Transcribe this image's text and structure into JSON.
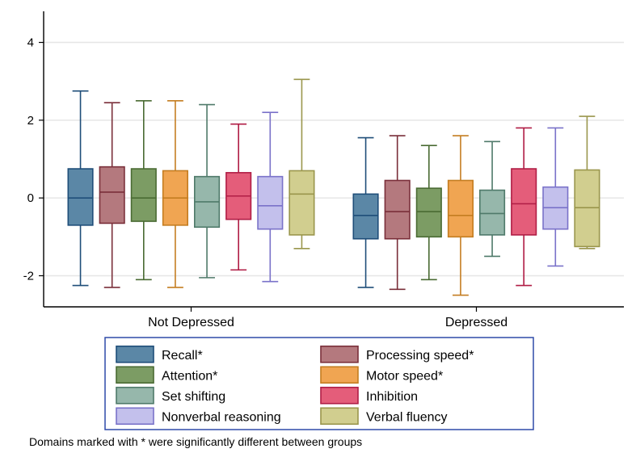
{
  "type": "boxplot",
  "background_color": "#ffffff",
  "plot_border_color": "#000000",
  "grid_color": "#e6e6e6",
  "ylim": [
    -2.8,
    4.8
  ],
  "yticks": [
    -2,
    0,
    2,
    4
  ],
  "tick_fontsize": 15,
  "axis_label_fontsize": 16,
  "groups": [
    "Not Depressed",
    "Depressed"
  ],
  "series": [
    {
      "key": "recall",
      "label": "Recall*",
      "fill": "#5b87a6",
      "stroke": "#1f4e79"
    },
    {
      "key": "procspeed",
      "label": "Processing speed*",
      "fill": "#b4797e",
      "stroke": "#7a2f3a"
    },
    {
      "key": "attention",
      "label": "Attention*",
      "fill": "#7c9c64",
      "stroke": "#4a6b33"
    },
    {
      "key": "motor",
      "label": "Motor speed*",
      "fill": "#f0a552",
      "stroke": "#c47d21"
    },
    {
      "key": "setshift",
      "label": "Set shifting",
      "fill": "#96b7ab",
      "stroke": "#4f7a6a"
    },
    {
      "key": "inhib",
      "label": "Inhibition",
      "fill": "#e45d7a",
      "stroke": "#b01d45"
    },
    {
      "key": "nonverb",
      "label": "Nonverbal reasoning",
      "fill": "#c3c0ec",
      "stroke": "#7a72c9"
    },
    {
      "key": "verbflu",
      "label": "Verbal fluency",
      "fill": "#d1ce8f",
      "stroke": "#9a964c"
    }
  ],
  "data": {
    "Not Depressed": {
      "recall": {
        "min": -2.25,
        "q1": -0.7,
        "median": 0.0,
        "q3": 0.75,
        "max": 2.75
      },
      "procspeed": {
        "min": -2.3,
        "q1": -0.65,
        "median": 0.15,
        "q3": 0.8,
        "max": 2.45
      },
      "attention": {
        "min": -2.1,
        "q1": -0.6,
        "median": 0.0,
        "q3": 0.75,
        "max": 2.5
      },
      "motor": {
        "min": -2.3,
        "q1": -0.7,
        "median": 0.0,
        "q3": 0.7,
        "max": 2.5
      },
      "setshift": {
        "min": -2.05,
        "q1": -0.75,
        "median": -0.1,
        "q3": 0.55,
        "max": 2.4
      },
      "inhib": {
        "min": -1.85,
        "q1": -0.55,
        "median": 0.05,
        "q3": 0.65,
        "max": 1.9
      },
      "nonverb": {
        "min": -2.15,
        "q1": -0.8,
        "median": -0.2,
        "q3": 0.55,
        "max": 2.2
      },
      "verbflu": {
        "min": -1.3,
        "q1": -0.95,
        "median": 0.1,
        "q3": 0.7,
        "max": 3.05
      }
    },
    "Depressed": {
      "recall": {
        "min": -2.3,
        "q1": -1.05,
        "median": -0.45,
        "q3": 0.1,
        "max": 1.55
      },
      "procspeed": {
        "min": -2.35,
        "q1": -1.05,
        "median": -0.35,
        "q3": 0.45,
        "max": 1.6
      },
      "attention": {
        "min": -2.1,
        "q1": -1.0,
        "median": -0.35,
        "q3": 0.25,
        "max": 1.35
      },
      "motor": {
        "min": -2.5,
        "q1": -1.0,
        "median": -0.45,
        "q3": 0.45,
        "max": 1.6
      },
      "setshift": {
        "min": -1.5,
        "q1": -0.95,
        "median": -0.4,
        "q3": 0.2,
        "max": 1.45
      },
      "inhib": {
        "min": -2.25,
        "q1": -0.95,
        "median": -0.15,
        "q3": 0.75,
        "max": 1.8
      },
      "nonverb": {
        "min": -1.75,
        "q1": -0.8,
        "median": -0.25,
        "q3": 0.28,
        "max": 1.8
      },
      "verbflu": {
        "min": -1.3,
        "q1": -1.25,
        "median": -0.25,
        "q3": 0.72,
        "max": 2.1
      }
    }
  },
  "box_width_ratio": 0.78,
  "whisker_linewidth": 1.6,
  "box_linewidth": 1.6,
  "legend": {
    "border_color": "#2f4aa8",
    "border_width": 1.5,
    "text_fontsize": 16,
    "cols": 2,
    "swatch_w": 46,
    "swatch_h": 20
  },
  "footnote": "Domains marked with * were significantly different between groups",
  "footnote_fontsize": 14
}
